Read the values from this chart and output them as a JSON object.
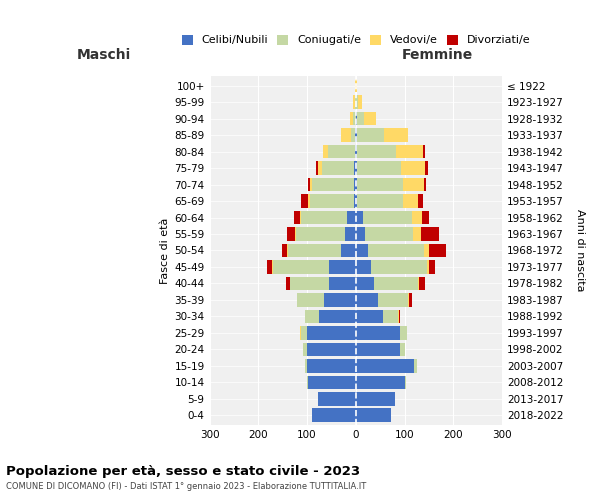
{
  "age_groups": [
    "0-4",
    "5-9",
    "10-14",
    "15-19",
    "20-24",
    "25-29",
    "30-34",
    "35-39",
    "40-44",
    "45-49",
    "50-54",
    "55-59",
    "60-64",
    "65-69",
    "70-74",
    "75-79",
    "80-84",
    "85-89",
    "90-94",
    "95-99",
    "100+"
  ],
  "birth_years": [
    "2018-2022",
    "2013-2017",
    "2008-2012",
    "2003-2007",
    "1998-2002",
    "1993-1997",
    "1988-1992",
    "1983-1987",
    "1978-1982",
    "1973-1977",
    "1968-1972",
    "1963-1967",
    "1958-1962",
    "1953-1957",
    "1948-1952",
    "1943-1947",
    "1938-1942",
    "1933-1937",
    "1928-1932",
    "1923-1927",
    "≤ 1922"
  ],
  "colors": {
    "celibi": "#4472C4",
    "coniugati": "#C5D8A4",
    "vedovi": "#FFD966",
    "divorziati": "#C00000"
  },
  "maschi": {
    "celibi": [
      90,
      78,
      98,
      100,
      100,
      100,
      75,
      65,
      55,
      55,
      30,
      22,
      18,
      4,
      4,
      4,
      2,
      1,
      0,
      0,
      0
    ],
    "coniugati": [
      0,
      0,
      2,
      5,
      8,
      12,
      30,
      55,
      80,
      115,
      110,
      100,
      95,
      90,
      85,
      65,
      55,
      10,
      5,
      2,
      0
    ],
    "vedovi": [
      0,
      0,
      0,
      0,
      0,
      2,
      0,
      1,
      1,
      2,
      2,
      2,
      2,
      4,
      5,
      8,
      10,
      20,
      8,
      3,
      1
    ],
    "divorziati": [
      0,
      0,
      0,
      0,
      0,
      0,
      0,
      0,
      8,
      10,
      10,
      18,
      12,
      15,
      5,
      5,
      0,
      0,
      0,
      0,
      0
    ]
  },
  "femmine": {
    "celibi": [
      72,
      80,
      100,
      120,
      90,
      90,
      55,
      45,
      38,
      30,
      25,
      18,
      15,
      2,
      2,
      2,
      2,
      2,
      2,
      0,
      0
    ],
    "coniugati": [
      0,
      0,
      2,
      5,
      10,
      15,
      32,
      62,
      90,
      115,
      115,
      100,
      100,
      95,
      95,
      90,
      80,
      55,
      15,
      5,
      1
    ],
    "vedovi": [
      0,
      0,
      0,
      0,
      0,
      0,
      2,
      2,
      2,
      5,
      10,
      15,
      20,
      30,
      42,
      50,
      55,
      50,
      25,
      8,
      2
    ],
    "divorziati": [
      0,
      0,
      0,
      0,
      0,
      0,
      2,
      5,
      12,
      12,
      35,
      38,
      15,
      10,
      5,
      5,
      5,
      0,
      0,
      0,
      0
    ]
  },
  "xlim": 300,
  "title": "Popolazione per età, sesso e stato civile - 2023",
  "subtitle": "COMUNE DI DICOMANO (FI) - Dati ISTAT 1° gennaio 2023 - Elaborazione TUTTITALIA.IT",
  "ylabel_left": "Fasce di età",
  "ylabel_right": "Anni di nascita",
  "xlabel_maschi": "Maschi",
  "xlabel_femmine": "Femmine",
  "legend_labels": [
    "Celibi/Nubili",
    "Coniugati/e",
    "Vedovi/e",
    "Divorziati/e"
  ],
  "background_color": "#ffffff",
  "plot_bg": "#f0f0f0"
}
